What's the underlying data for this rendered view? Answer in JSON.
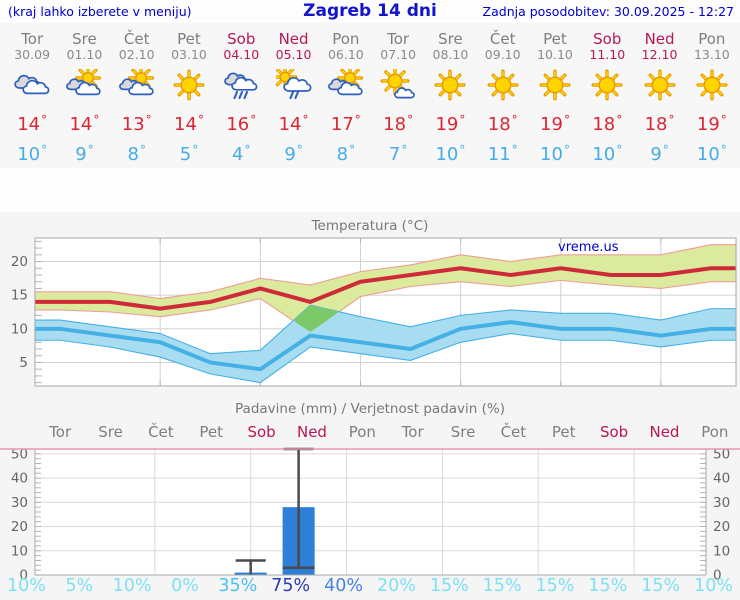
{
  "header": {
    "note_left": "(kraj lahko izberete v meniju)",
    "title": "Zagreb 14 dni",
    "updated": "Zadnja posodobitev: 30.09.2025 - 12:27"
  },
  "units": {
    "degree": "°"
  },
  "days": [
    {
      "name": "Tor",
      "date": "30.09",
      "weekend": false,
      "icon": "cloudy",
      "high": 14,
      "low": 10,
      "prob": "10%",
      "prob_level": "low"
    },
    {
      "name": "Sre",
      "date": "01.10",
      "weekend": false,
      "icon": "sun-cloud",
      "high": 14,
      "low": 9,
      "prob": "5%",
      "prob_level": "low"
    },
    {
      "name": "Čet",
      "date": "02.10",
      "weekend": false,
      "icon": "sun-cloud",
      "high": 13,
      "low": 8,
      "prob": "10%",
      "prob_level": "low"
    },
    {
      "name": "Pet",
      "date": "03.10",
      "weekend": false,
      "icon": "sunny",
      "high": 14,
      "low": 5,
      "prob": "0%",
      "prob_level": "low"
    },
    {
      "name": "Sob",
      "date": "04.10",
      "weekend": true,
      "icon": "rain",
      "high": 16,
      "low": 4,
      "prob": "35%",
      "prob_level": "mid"
    },
    {
      "name": "Ned",
      "date": "05.10",
      "weekend": true,
      "icon": "sun-rain",
      "high": 14,
      "low": 9,
      "prob": "75%",
      "prob_level": "very_high"
    },
    {
      "name": "Pon",
      "date": "06.10",
      "weekend": false,
      "icon": "sun-cloud",
      "high": 17,
      "low": 8,
      "prob": "40%",
      "prob_level": "high"
    },
    {
      "name": "Tor",
      "date": "07.10",
      "weekend": false,
      "icon": "sun-small-cloud",
      "high": 18,
      "low": 7,
      "prob": "20%",
      "prob_level": "low"
    },
    {
      "name": "Sre",
      "date": "08.10",
      "weekend": false,
      "icon": "sunny",
      "high": 19,
      "low": 10,
      "prob": "15%",
      "prob_level": "low"
    },
    {
      "name": "Čet",
      "date": "09.10",
      "weekend": false,
      "icon": "sunny",
      "high": 18,
      "low": 11,
      "prob": "15%",
      "prob_level": "low"
    },
    {
      "name": "Pet",
      "date": "10.10",
      "weekend": false,
      "icon": "sunny",
      "high": 19,
      "low": 10,
      "prob": "15%",
      "prob_level": "low"
    },
    {
      "name": "Sob",
      "date": "11.10",
      "weekend": true,
      "icon": "sunny",
      "high": 18,
      "low": 10,
      "prob": "15%",
      "prob_level": "low"
    },
    {
      "name": "Ned",
      "date": "12.10",
      "weekend": true,
      "icon": "sunny",
      "high": 18,
      "low": 9,
      "prob": "15%",
      "prob_level": "low"
    },
    {
      "name": "Pon",
      "date": "13.10",
      "weekend": false,
      "icon": "sunny",
      "high": 19,
      "low": 10,
      "prob": "10%",
      "prob_level": "low"
    }
  ],
  "temp_chart": {
    "title": "Temperatura (°C)",
    "watermark": "vreme.us",
    "yticks": [
      5,
      10,
      15,
      20
    ],
    "ymin": 1.5,
    "ymax": 23.5,
    "max_temps": [
      14,
      14,
      13,
      14,
      16,
      14,
      17,
      18,
      19,
      18,
      19,
      18,
      18,
      19
    ],
    "min_temps": [
      10,
      9,
      8,
      5,
      4,
      9,
      8,
      7,
      10,
      11,
      10,
      10,
      9,
      10
    ],
    "max_band_upper": [
      15.5,
      15.5,
      14.5,
      15.5,
      17.5,
      16.5,
      18.5,
      19.5,
      21,
      20,
      21,
      21,
      21,
      22.5
    ],
    "max_band_lower": [
      12.8,
      12.5,
      11.8,
      12.8,
      14.5,
      9.5,
      14.8,
      16.3,
      17,
      16.3,
      17.2,
      16.5,
      16,
      17
    ],
    "min_band_upper": [
      11.3,
      10.3,
      9.3,
      6.3,
      6.8,
      13.5,
      11.8,
      10.3,
      12,
      12.8,
      12.3,
      12.3,
      11.3,
      13
    ],
    "min_band_lower": [
      8.3,
      7.3,
      5.8,
      3.3,
      2,
      7.3,
      6.3,
      5.3,
      8,
      9.3,
      8.3,
      8.3,
      7.3,
      8.3
    ]
  },
  "precip_chart": {
    "title": "Padavine (mm) / Verjetnost padavin (%)",
    "yticks": [
      0,
      10,
      20,
      30,
      40,
      50
    ],
    "ymax_mm": 52,
    "bars": [
      {
        "day": 4,
        "mm": 1,
        "whisker_low": 0,
        "whisker_high": 6
      },
      {
        "day": 5,
        "mm": 28,
        "whisker_low": 3,
        "whisker_high": 52
      }
    ]
  },
  "colors": {
    "link_blue": "#0000cc",
    "weekend": "#b81658",
    "weekday": "#7e7e7e",
    "high_red": "#dc2633",
    "low_blue": "#45ace8",
    "max_line": "#cf2a39",
    "max_band": "#dcea9e",
    "max_band_edge": "#ec9f93",
    "min_line": "#45b0e5",
    "min_band": "#a8ddf1",
    "overlap_green": "#7cc96a",
    "bar_blue": "#2d7fd8",
    "whisker": "#4a4a4a",
    "grid": "#d0d0d0",
    "axis_text": "#666666",
    "plot_border": "#a8a8a8",
    "pink_rule": "#e897ad",
    "prob_low": "#7fe0f4",
    "prob_mid": "#4cc2ef",
    "prob_high": "#4a82e0",
    "prob_very_high": "#2a3ab5"
  },
  "chart_data": [
    {
      "type": "line",
      "title": "Temperatura (°C)",
      "x_labels": [
        "Tor 30.09",
        "Sre 01.10",
        "Čet 02.10",
        "Pet 03.10",
        "Sob 04.10",
        "Ned 05.10",
        "Pon 06.10",
        "Tor 07.10",
        "Sre 08.10",
        "Čet 09.10",
        "Pet 10.10",
        "Sob 11.10",
        "Ned 12.10",
        "Pon 13.10"
      ],
      "series": [
        {
          "name": "max temperature",
          "values": [
            14,
            14,
            13,
            14,
            16,
            14,
            17,
            18,
            19,
            18,
            19,
            18,
            18,
            19
          ]
        },
        {
          "name": "min temperature",
          "values": [
            10,
            9,
            8,
            5,
            4,
            9,
            8,
            7,
            10,
            11,
            10,
            10,
            9,
            10
          ]
        }
      ],
      "ylim": [
        1.5,
        23.5
      ],
      "yticks": [
        5,
        10,
        15,
        20
      ],
      "grid": true,
      "legend": false
    },
    {
      "type": "bar",
      "title": "Padavine (mm) / Verjetnost padavin (%)",
      "categories": [
        "Tor",
        "Sre",
        "Čet",
        "Pet",
        "Sob",
        "Ned",
        "Pon",
        "Tor",
        "Sre",
        "Čet",
        "Pet",
        "Sob",
        "Ned",
        "Pon"
      ],
      "values_mm": [
        0,
        0,
        0,
        0,
        1,
        28,
        0,
        0,
        0,
        0,
        0,
        0,
        0,
        0
      ],
      "whiskers": [
        {
          "day": 4,
          "low": 0,
          "high": 6
        },
        {
          "day": 5,
          "low": 3,
          "high": 52
        }
      ],
      "probabilities_pct": [
        10,
        5,
        10,
        0,
        35,
        75,
        40,
        20,
        15,
        15,
        15,
        15,
        15,
        10
      ],
      "ylim": [
        0,
        52
      ],
      "yticks": [
        0,
        10,
        20,
        30,
        40,
        50
      ],
      "grid": true
    }
  ]
}
